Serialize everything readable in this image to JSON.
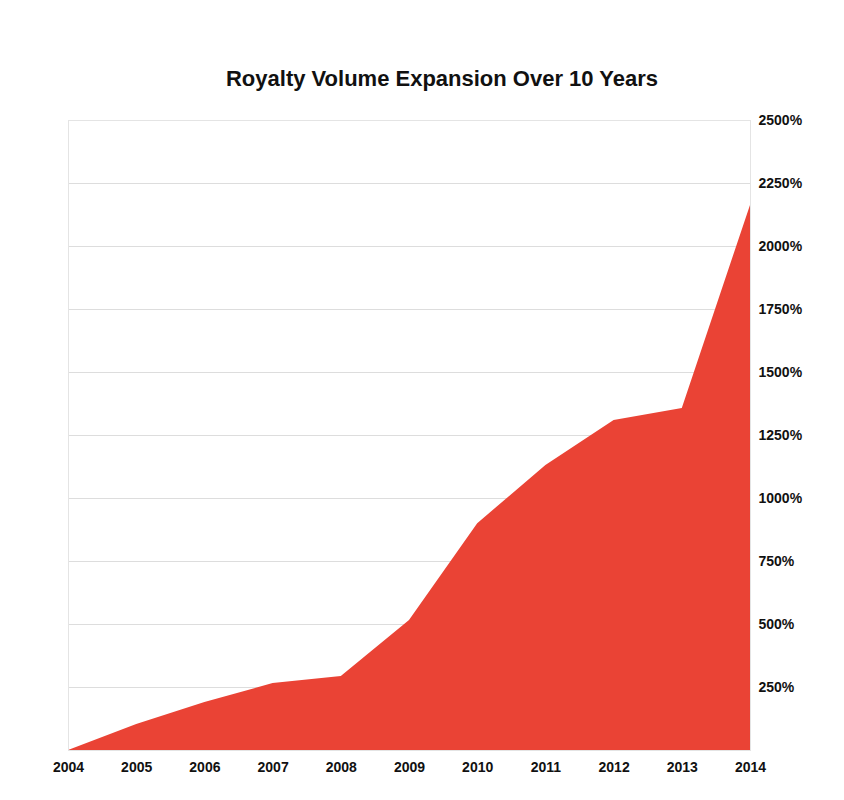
{
  "chart_data": {
    "type": "area",
    "title": "Royalty Volume Expansion Over 10 Years",
    "x": [
      2004,
      2005,
      2006,
      2007,
      2008,
      2009,
      2010,
      2011,
      2012,
      2013,
      2014
    ],
    "values": [
      0,
      103,
      190,
      266,
      294,
      516,
      900,
      1131,
      1310,
      1357,
      2163
    ],
    "color": "#ea4335",
    "xlim": [
      2004,
      2014
    ],
    "xticks": [
      2004,
      2005,
      2006,
      2007,
      2008,
      2009,
      2010,
      2011,
      2012,
      2013,
      2014
    ],
    "ylim": [
      0,
      2500
    ],
    "yticks": [
      {
        "value": 250,
        "label": "250%"
      },
      {
        "value": 500,
        "label": "500%"
      },
      {
        "value": 750,
        "label": "750%"
      },
      {
        "value": 1000,
        "label": "1000%"
      },
      {
        "value": 1250,
        "label": "1250%"
      },
      {
        "value": 1500,
        "label": "1500%"
      },
      {
        "value": 1750,
        "label": "1750%"
      },
      {
        "value": 2000,
        "label": "2000%"
      },
      {
        "value": 2250,
        "label": "2250%"
      },
      {
        "value": 2500,
        "label": "2500%"
      }
    ],
    "grid": true
  }
}
